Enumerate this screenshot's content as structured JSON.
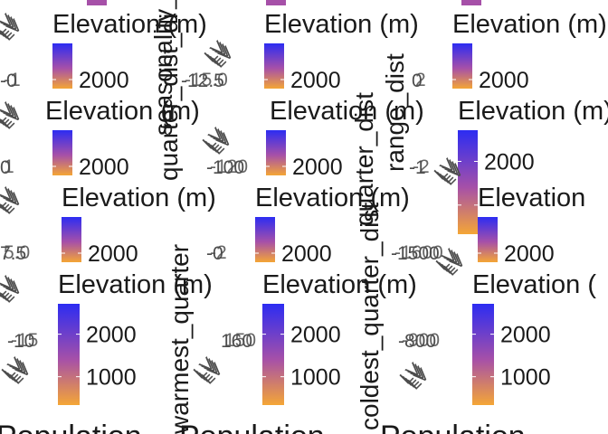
{
  "chart_data": {
    "type": "heatmap",
    "title": "",
    "colorbar": {
      "title": "Elevation (m)",
      "colors": {
        "low": "#F4A636",
        "mid": "#A650A8",
        "high": "#2C2CF2"
      }
    },
    "panels": [
      {
        "id": "r0c0",
        "legend_title": "Elevation (m)",
        "legend_ticks": [
          "2000"
        ],
        "axis_ticks": [
          "-0",
          "-1"
        ]
      },
      {
        "id": "r0c1",
        "legend_title": "Elevation (m)",
        "legend_ticks": [
          "2000"
        ],
        "axis_ticks": [
          "-12.5",
          "-15.0"
        ]
      },
      {
        "id": "r0c2",
        "legend_title": "Elevation (m)",
        "legend_ticks": [
          "2000"
        ],
        "axis_ticks": [
          "0",
          "2"
        ]
      },
      {
        "id": "r1c0",
        "legend_title": "Elevation (m)",
        "legend_ticks": [
          "2000"
        ],
        "axis_ticks": [
          "0",
          "1"
        ]
      },
      {
        "id": "r1c1",
        "legend_title": "Elevation (m)",
        "legend_ticks": [
          "2000"
        ],
        "axis_ticks": [
          "-100",
          "-120"
        ]
      },
      {
        "id": "r1c2",
        "legend_title": "Elevation (m)",
        "legend_ticks": [
          "2000"
        ],
        "axis_ticks": [
          "-1",
          "-2"
        ]
      },
      {
        "id": "r2c0",
        "legend_title": "Elevation (m)",
        "legend_ticks": [
          "2000"
        ],
        "axis_ticks": [
          "7.5",
          "5.0"
        ]
      },
      {
        "id": "r2c1",
        "legend_title": "Elevation (m)",
        "legend_ticks": [
          "2000"
        ],
        "axis_ticks": [
          "-0",
          "-2"
        ]
      },
      {
        "id": "r2c2",
        "legend_title": "Elevation",
        "legend_ticks": [
          "2000"
        ],
        "axis_ticks": [
          "-1500",
          "-1600"
        ]
      },
      {
        "id": "r3c0",
        "legend_title": "Elevation (m)",
        "legend_ticks": [
          "2000",
          "1000"
        ],
        "axis_ticks": [
          "-10",
          "-15"
        ]
      },
      {
        "id": "r3c1",
        "legend_title": "Elevation (m)",
        "legend_ticks": [
          "2000",
          "1000"
        ],
        "axis_ticks": [
          "160",
          "150"
        ]
      },
      {
        "id": "r3c2",
        "legend_title": "Elevation (",
        "legend_ticks": [
          "2000",
          "1000"
        ],
        "axis_ticks": [
          "-800",
          "-900"
        ]
      }
    ],
    "rotated_labels": {
      "quarter_dist_a": "quarter_dist_di",
      "seasonality_dist": "seasonality_dist",
      "range_dist": "range_dist",
      "warmest_quarter": "warmest_quarter",
      "coldest_quarter_dist": "coldest_quarter_dist",
      "quarter_dist_b": "quarter_dist"
    },
    "x_axis_labels": [
      "Population",
      "Population",
      "Population"
    ],
    "corner_tick": "LV"
  }
}
